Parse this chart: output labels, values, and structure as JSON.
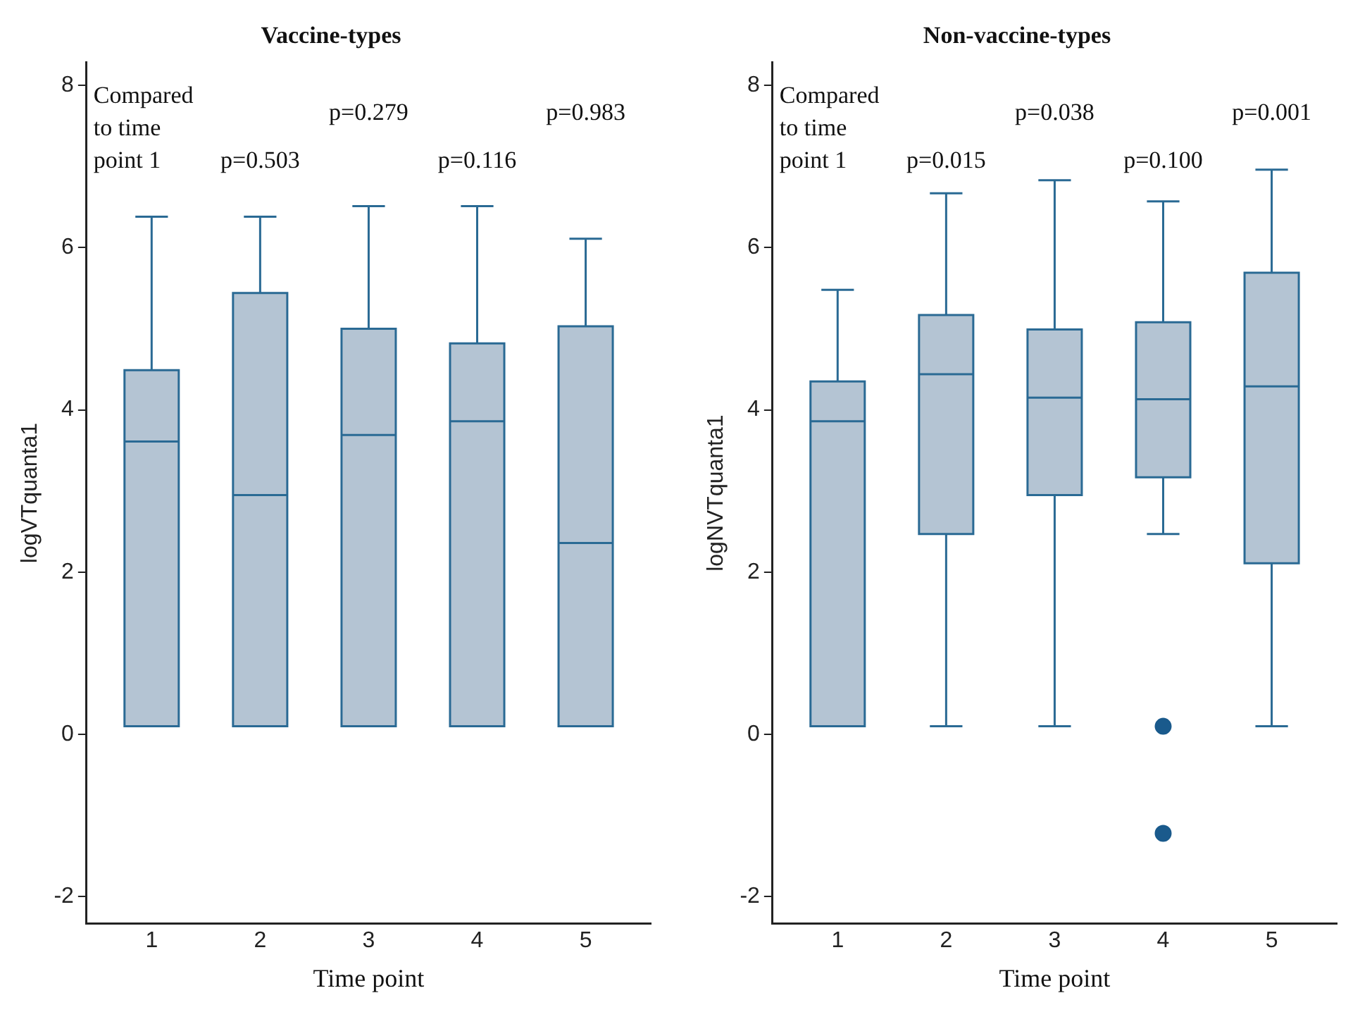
{
  "chart_data": [
    {
      "type": "box",
      "title": "Vaccine-types",
      "xlabel": "Time point",
      "ylabel": "logVTquanta1",
      "categories": [
        "1",
        "2",
        "3",
        "4",
        "5"
      ],
      "color": "#b4c4d3",
      "boxes": [
        {
          "low": 0.1,
          "q1": 0.1,
          "median": 3.61,
          "q3": 4.49,
          "high": 6.38
        },
        {
          "low": 0.1,
          "q1": 0.1,
          "median": 2.95,
          "q3": 5.44,
          "high": 6.38
        },
        {
          "low": 0.1,
          "q1": 0.1,
          "median": 3.69,
          "q3": 5.0,
          "high": 6.51
        },
        {
          "low": 0.1,
          "q1": 0.1,
          "median": 3.86,
          "q3": 4.82,
          "high": 6.51
        },
        {
          "low": 0.1,
          "q1": 0.1,
          "median": 2.36,
          "q3": 5.03,
          "high": 6.11
        }
      ],
      "ylim": [
        -2.33,
        8.28
      ],
      "yticks": [
        -2,
        0,
        2,
        4,
        6,
        8
      ],
      "annotations": [
        "Compared to time point 1",
        "p=0.503",
        "p=0.279",
        "p=0.116",
        "p=0.983"
      ]
    },
    {
      "type": "box",
      "title": "Non-vaccine-types",
      "xlabel": "Time point",
      "ylabel": "logNVTquanta1",
      "categories": [
        "1",
        "2",
        "3",
        "4",
        "5"
      ],
      "color": "#b4c4d3",
      "boxes": [
        {
          "low": 0.1,
          "q1": 0.1,
          "median": 3.86,
          "q3": 4.35,
          "high": 5.48
        },
        {
          "low": 0.1,
          "q1": 2.47,
          "median": 4.44,
          "q3": 5.17,
          "high": 6.67
        },
        {
          "low": 0.1,
          "q1": 2.95,
          "median": 4.15,
          "q3": 4.99,
          "high": 6.83
        },
        {
          "low": 2.47,
          "q1": 3.17,
          "median": 4.13,
          "q3": 5.08,
          "high": 6.57,
          "outliers": [
            0.1,
            -1.22
          ]
        },
        {
          "low": 0.1,
          "q1": 2.11,
          "median": 4.29,
          "q3": 5.69,
          "high": 6.96
        }
      ],
      "ylim": [
        -2.33,
        8.28
      ],
      "yticks": [
        -2,
        0,
        2,
        4,
        6,
        8
      ],
      "annotations": [
        "Compared to time point 1",
        "p=0.015",
        "p=0.038",
        "p=0.100",
        "p=0.001"
      ]
    }
  ]
}
